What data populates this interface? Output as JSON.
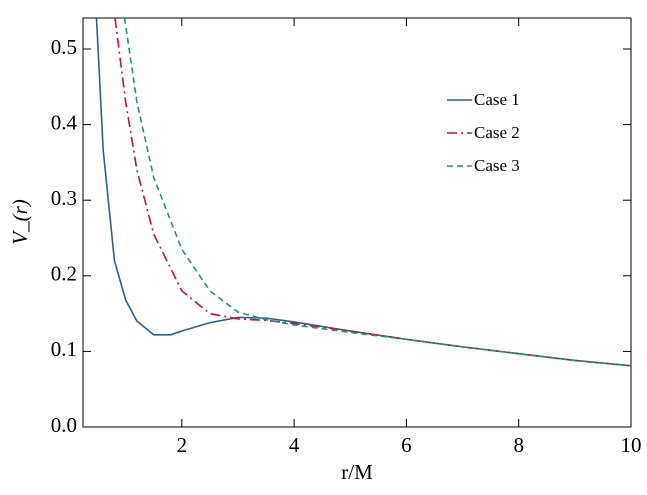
{
  "chart_data": {
    "type": "line",
    "x_label": "r/M",
    "y_label": "V_(r)",
    "xlim": [
      0.24,
      10
    ],
    "ylim": [
      0,
      0.541
    ],
    "xticks": [
      2,
      4,
      6,
      8,
      10
    ],
    "yticks": [
      {
        "value": 0,
        "label": "0.0"
      },
      0.1,
      0.2,
      0.3,
      0.4,
      0.5
    ],
    "series": [
      {
        "name": "Case 1",
        "color": "#2e5f8f",
        "dash": "solid",
        "x": [
          0.48,
          0.6,
          0.8,
          1.0,
          1.2,
          1.5,
          1.8,
          2.0,
          2.5,
          3.0,
          3.5,
          4,
          5,
          6,
          7,
          8,
          9,
          10
        ],
        "values": [
          0.541,
          0.366,
          0.22,
          0.168,
          0.14,
          0.122,
          0.122,
          0.127,
          0.138,
          0.145,
          0.144,
          0.139,
          0.127,
          0.116,
          0.106,
          0.097,
          0.088,
          0.081
        ]
      },
      {
        "name": "Case 2",
        "color": "#c8103e",
        "dash": "dashdot",
        "x": [
          0.81,
          1.0,
          1.2,
          1.5,
          2.0,
          2.5,
          3.0,
          3.5,
          4,
          5,
          6,
          7,
          8,
          9,
          10
        ],
        "values": [
          0.541,
          0.43,
          0.34,
          0.255,
          0.18,
          0.15,
          0.143,
          0.141,
          0.137,
          0.127,
          0.116,
          0.106,
          0.097,
          0.088,
          0.081
        ]
      },
      {
        "name": "Case 3",
        "color": "#1a9a6a",
        "dash": "dashed",
        "x": [
          0.98,
          1.2,
          1.5,
          2.0,
          2.5,
          3.0,
          3.5,
          4,
          5,
          6,
          7,
          8,
          9,
          10
        ],
        "values": [
          0.541,
          0.43,
          0.33,
          0.235,
          0.18,
          0.152,
          0.142,
          0.135,
          0.125,
          0.116,
          0.106,
          0.097,
          0.088,
          0.081
        ]
      }
    ]
  }
}
